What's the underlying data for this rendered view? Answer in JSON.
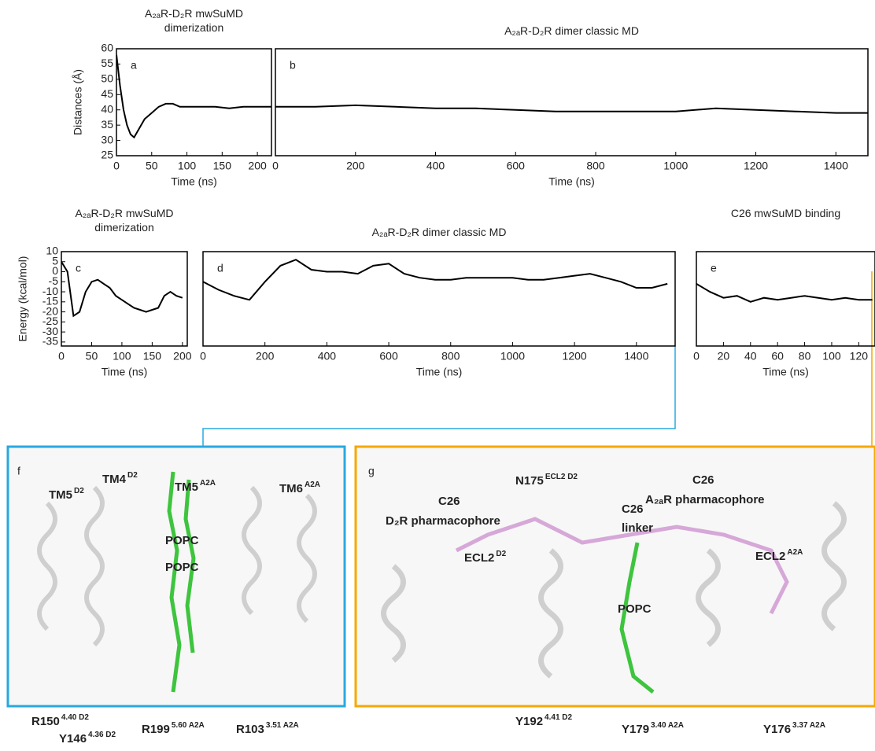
{
  "chart_data": [
    {
      "type": "line",
      "panel": "a",
      "title": "A₂ₐR-D₂R mwSuMD dimerization",
      "xlabel": "Time (ns)",
      "ylabel": "Distances (Å)",
      "xlim": [
        0,
        220
      ],
      "ylim": [
        25,
        60
      ],
      "xticks": [
        0,
        50,
        100,
        150,
        200
      ],
      "yticks": [
        25,
        30,
        35,
        40,
        45,
        50,
        55,
        60
      ],
      "series": [
        {
          "color": "#000000",
          "x": [
            0,
            5,
            10,
            15,
            20,
            25,
            30,
            40,
            50,
            60,
            70,
            80,
            90,
            100,
            120,
            140,
            160,
            180,
            200,
            220
          ],
          "values": [
            58,
            48,
            40,
            35,
            32,
            31,
            33,
            37,
            39,
            41,
            42,
            42,
            41,
            41,
            41,
            41,
            40.5,
            41,
            41,
            41
          ]
        }
      ]
    },
    {
      "type": "line",
      "panel": "b",
      "title": "A₂ₐR-D₂R dimer classic MD",
      "xlabel": "Time (ns)",
      "xlim": [
        0,
        1480
      ],
      "ylim": [
        25,
        60
      ],
      "xticks": [
        0,
        200,
        400,
        600,
        800,
        1000,
        1200,
        1400
      ],
      "series": [
        {
          "color": "#000000",
          "x": [
            0,
            100,
            200,
            300,
            400,
            500,
            600,
            700,
            800,
            900,
            1000,
            1100,
            1200,
            1300,
            1400,
            1480
          ],
          "values": [
            41,
            41,
            41.5,
            41,
            40.5,
            40.5,
            40,
            39.5,
            39.5,
            39.5,
            39.5,
            40.5,
            40,
            39.5,
            39,
            39
          ]
        }
      ]
    },
    {
      "type": "line",
      "panel": "c",
      "title": "A₂ₐR-D₂R mwSuMD dimerization",
      "xlabel": "Time (ns)",
      "ylabel": "Energy (kcal/mol)",
      "xlim": [
        0,
        208
      ],
      "ylim": [
        -37,
        10
      ],
      "xticks": [
        0,
        50,
        100,
        150,
        200
      ],
      "yticks": [
        10,
        5,
        0,
        -5,
        -10,
        -15,
        -20,
        -25,
        -30,
        -35
      ],
      "series": [
        {
          "color": "#000000",
          "x": [
            0,
            10,
            20,
            30,
            40,
            50,
            60,
            70,
            80,
            90,
            100,
            110,
            120,
            130,
            140,
            150,
            160,
            170,
            180,
            190,
            200
          ],
          "values": [
            5,
            0,
            -22,
            -20,
            -10,
            -5,
            -4,
            -6,
            -8,
            -12,
            -14,
            -16,
            -18,
            -19,
            -20,
            -19,
            -18,
            -12,
            -10,
            -12,
            -13
          ]
        }
      ]
    },
    {
      "type": "line",
      "panel": "d",
      "title": "A₂ₐR-D₂R dimer classic MD",
      "xlabel": "Time (ns)",
      "xlim": [
        0,
        1525
      ],
      "ylim": [
        -37,
        10
      ],
      "xticks": [
        0,
        200,
        400,
        600,
        800,
        1000,
        1200,
        1400
      ],
      "series": [
        {
          "color": "#000000",
          "x": [
            0,
            50,
            100,
            150,
            200,
            250,
            300,
            350,
            400,
            450,
            500,
            550,
            600,
            650,
            700,
            750,
            800,
            850,
            900,
            950,
            1000,
            1050,
            1100,
            1150,
            1200,
            1250,
            1300,
            1350,
            1400,
            1450,
            1500
          ],
          "values": [
            -5,
            -9,
            -12,
            -14,
            -5,
            3,
            6,
            1,
            0,
            0,
            -1,
            3,
            4,
            -1,
            -3,
            -4,
            -4,
            -3,
            -3,
            -3,
            -3,
            -4,
            -4,
            -3,
            -2,
            -1,
            -3,
            -5,
            -8,
            -8,
            -6
          ]
        }
      ]
    },
    {
      "type": "line",
      "panel": "e",
      "title": "C26 mwSuMD binding",
      "xlabel": "Time (ns)",
      "xlim": [
        0,
        132
      ],
      "ylim": [
        -37,
        10
      ],
      "xticks": [
        0,
        20,
        40,
        60,
        80,
        100,
        120
      ],
      "series": [
        {
          "color": "#000000",
          "x": [
            0,
            10,
            20,
            30,
            40,
            50,
            60,
            70,
            80,
            90,
            100,
            110,
            120,
            130
          ],
          "values": [
            -6,
            -10,
            -13,
            -12,
            -15,
            -13,
            -14,
            -13,
            -12,
            -13,
            -14,
            -13,
            -14,
            -14
          ]
        }
      ]
    }
  ],
  "structures": [
    {
      "panel": "f",
      "labels": [
        {
          "text": "TM5",
          "sup": "D2"
        },
        {
          "text": "TM4",
          "sup": "D2"
        },
        {
          "text": "TM5",
          "sup": "A2A"
        },
        {
          "text": "TM6",
          "sup": "A2A"
        },
        {
          "text": "POPC"
        },
        {
          "text": "POPC"
        },
        {
          "text": "R150",
          "sup": "4.40 D2"
        },
        {
          "text": "Y146",
          "sup": "4.36 D2"
        },
        {
          "text": "R199",
          "sup": "5.60 A2A"
        },
        {
          "text": "R103",
          "sup": "3.51 A2A"
        }
      ]
    },
    {
      "panel": "g",
      "labels": [
        {
          "text": "C26"
        },
        {
          "text": "D₂R pharmacophore"
        },
        {
          "text": "ECL2",
          "sup": "D2"
        },
        {
          "text": "N175",
          "sup": "ECL2 D2"
        },
        {
          "text": "C26"
        },
        {
          "text": "linker"
        },
        {
          "text": "C26"
        },
        {
          "text": "A₂ₐR pharmacophore"
        },
        {
          "text": "ECL2",
          "sup": "A2A"
        },
        {
          "text": "POPC"
        },
        {
          "text": "Y192",
          "sup": "4.41 D2"
        },
        {
          "text": "Y179",
          "sup": "3.40 A2A"
        },
        {
          "text": "Y176",
          "sup": "3.37 A2A"
        }
      ]
    }
  ]
}
